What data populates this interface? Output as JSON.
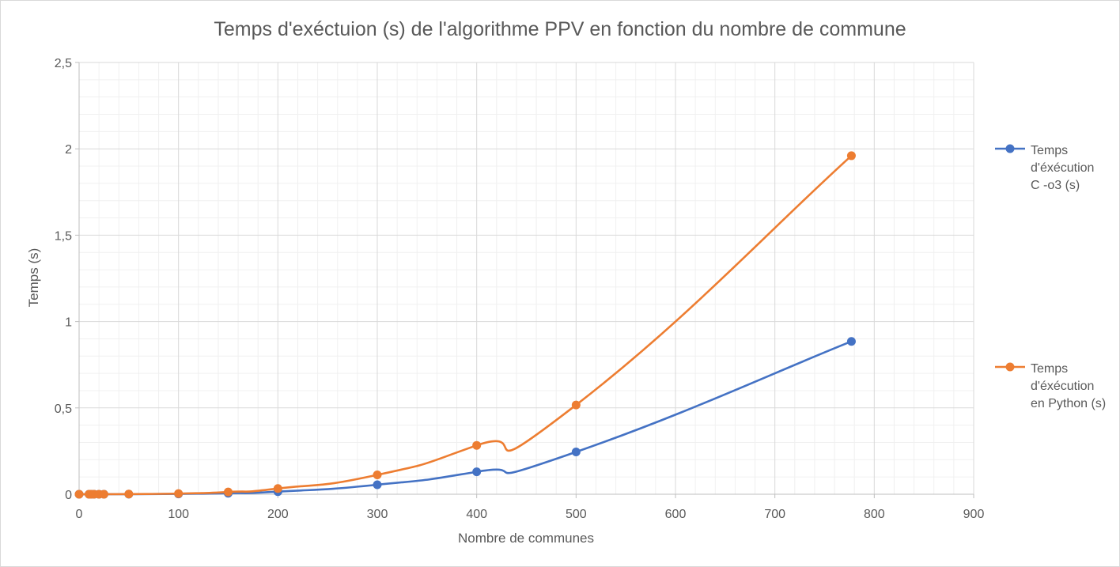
{
  "chart_data": {
    "type": "line",
    "title": "Temps d'exéctuion (s) de l'algorithme PPV en fonction du nombre de commune",
    "xlabel": "Nombre de communes",
    "ylabel": "Temps (s)",
    "xlim": [
      0,
      900
    ],
    "ylim": [
      0,
      2.5
    ],
    "x_ticks": [
      0,
      100,
      200,
      300,
      400,
      500,
      600,
      700,
      800,
      900
    ],
    "y_ticks": [
      0,
      0.5,
      1,
      1.5,
      2,
      2.5
    ],
    "y_tick_labels": [
      "0",
      "0,5",
      "1",
      "1,5",
      "2",
      "2,5"
    ],
    "grid": "major and minor",
    "legend_position": "right",
    "smooth": true,
    "series": [
      {
        "name_lines": [
          "Temps",
          "d'éxécution",
          "C -o3 (s)"
        ],
        "color": "#4472C4",
        "x": [
          0,
          10,
          12,
          15,
          20,
          25,
          50,
          100,
          150,
          200,
          300,
          400,
          500,
          777
        ],
        "y": [
          0,
          0,
          0,
          0,
          0,
          0,
          0.0005,
          0.002,
          0.006,
          0.015,
          0.055,
          0.13,
          0.245,
          0.885
        ]
      },
      {
        "name_lines": [
          "Temps",
          "d'éxécution",
          "en Python (s)"
        ],
        "color": "#ED7D31",
        "x": [
          0,
          10,
          12,
          15,
          20,
          25,
          50,
          100,
          150,
          200,
          300,
          400,
          500,
          777
        ],
        "y": [
          0,
          0,
          0,
          0,
          0,
          0,
          0.001,
          0.004,
          0.013,
          0.033,
          0.112,
          0.283,
          0.517,
          1.96
        ]
      }
    ]
  }
}
